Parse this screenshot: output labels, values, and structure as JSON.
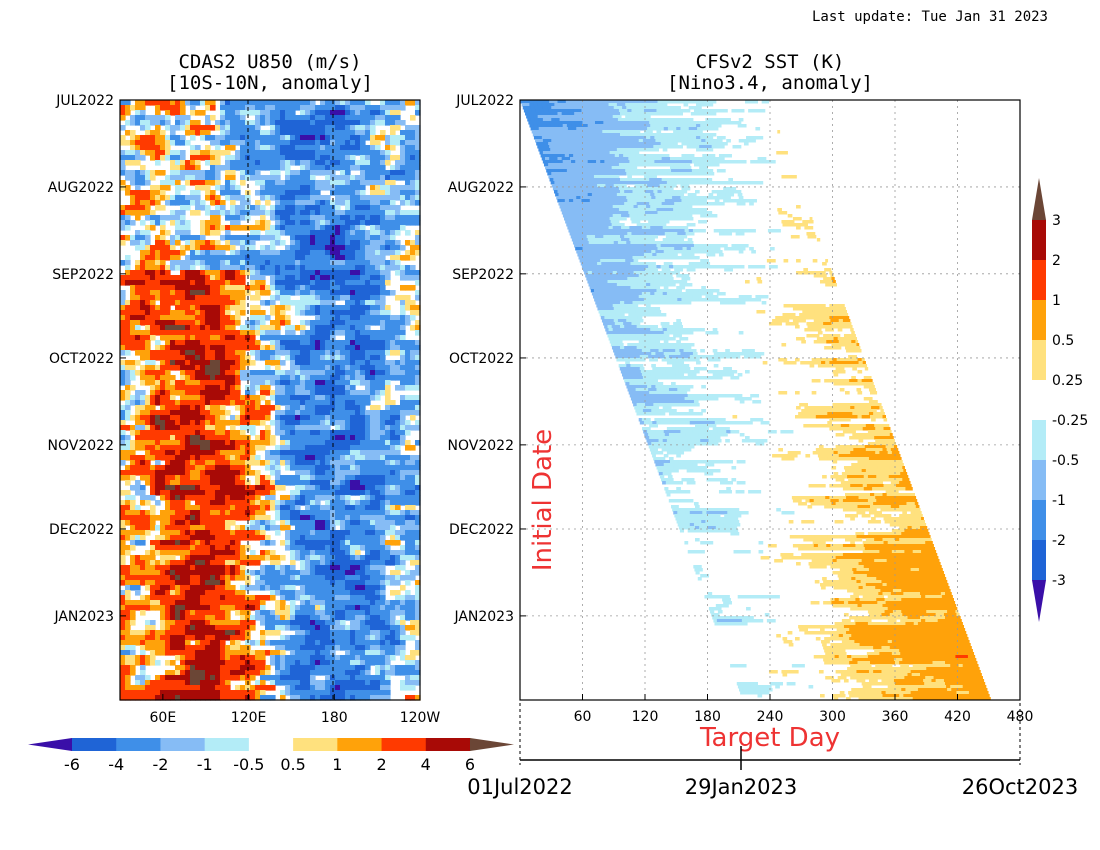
{
  "last_update": "Last update: Tue Jan 31 2023",
  "chart_data": [
    {
      "type": "heatmap",
      "title": "CDAS2 U850 (m/s)",
      "subtitle": "[10S-10N, anomaly]",
      "xlabel": "",
      "ylabel": "",
      "x_ticks": [
        "60E",
        "120E",
        "180",
        "120W"
      ],
      "x_tick_values_deg": [
        60,
        120,
        180,
        240
      ],
      "xlim_deg": [
        30,
        240
      ],
      "y_ticks": [
        "JUL2022",
        "AUG2022",
        "SEP2022",
        "OCT2022",
        "NOV2022",
        "DEC2022",
        "JAN2023"
      ],
      "y_tick_days": [
        0,
        31,
        62,
        92,
        123,
        153,
        184
      ],
      "ylim_days": [
        0,
        214
      ],
      "reference_lines_deg": [
        120,
        180
      ],
      "colorbar": {
        "labels": [
          "-6",
          "-4",
          "-2",
          "-1",
          "-0.5",
          "0.5",
          "1",
          "2",
          "4",
          "6"
        ],
        "colors": [
          "#3a0fa8",
          "#1f64d6",
          "#3f8fe8",
          "#86bcf5",
          "#b3ecf7",
          "#ffffff",
          "#ffe17e",
          "#ffa20a",
          "#ff3a00",
          "#a80a06",
          "#6b4636"
        ]
      },
      "features": [
        {
          "desc": "westerly anomaly band",
          "lon_center": 90,
          "strength": 5,
          "from_day": 60,
          "to_day": 214
        },
        {
          "desc": "easterly anomaly band",
          "lon_center": 180,
          "strength": -4,
          "from_day": 0,
          "to_day": 214
        }
      ]
    },
    {
      "type": "heatmap",
      "title": "CFSv2 SST (K)",
      "subtitle": "[Nino3.4, anomaly]",
      "xlabel": "Target Day",
      "ylabel": "Initial Date",
      "x_ticks": [
        "60",
        "120",
        "180",
        "240",
        "300",
        "360",
        "420",
        "480"
      ],
      "x_tick_values": [
        60,
        120,
        180,
        240,
        300,
        360,
        420,
        480
      ],
      "xlim": [
        0,
        480
      ],
      "y_ticks": [
        "JUL2022",
        "AUG2022",
        "SEP2022",
        "OCT2022",
        "NOV2022",
        "DEC2022",
        "JAN2023"
      ],
      "y_tick_days": [
        0,
        31,
        62,
        92,
        123,
        153,
        184
      ],
      "ylim_days": [
        0,
        214
      ],
      "forecast_lead_days": 238,
      "grid": "dotted",
      "date_axis": {
        "labels": [
          "01Jul2022",
          "29Jan2023",
          "26Oct2023"
        ],
        "values": [
          0,
          212,
          480
        ]
      },
      "colorbar": {
        "labels": [
          "-3",
          "-2",
          "-1",
          "-0.5",
          "-0.25",
          "0.25",
          "0.5",
          "1",
          "2",
          "3"
        ],
        "colors": [
          "#3a0fa8",
          "#1f64d6",
          "#3f8fe8",
          "#86bcf5",
          "#b3ecf7",
          "#ffffff",
          "#ffe17e",
          "#ffa20a",
          "#ff3a00",
          "#a80a06",
          "#6b4636"
        ]
      },
      "features": [
        {
          "desc": "cold anomaly near start",
          "anomaly": -0.8,
          "at_target_day": 0
        },
        {
          "desc": "zero crossing",
          "anomaly": 0,
          "at_target_day": 240
        },
        {
          "desc": "warm anomaly at end",
          "anomaly": 0.8,
          "at_target_day": 440
        }
      ]
    }
  ]
}
